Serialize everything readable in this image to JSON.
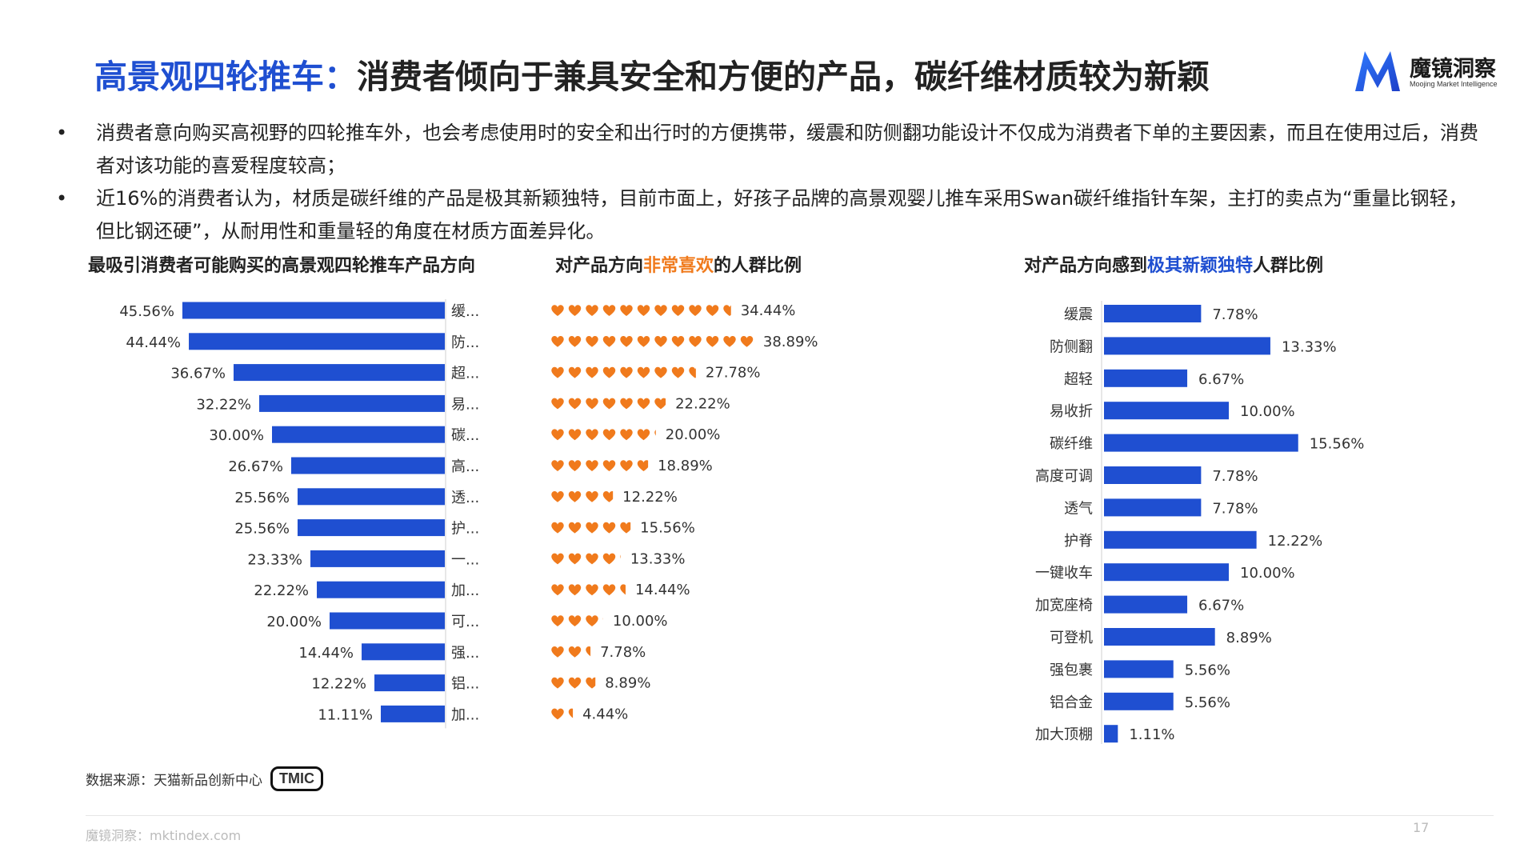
{
  "header": {
    "title_accent": "高景观四轮推车：",
    "title_rest": "消费者倾向于兼具安全和方便的产品，碳纤维材质较为新颖",
    "logo_cn": "魔镜洞察",
    "logo_en": "Moojing Market Intelligence",
    "logo_letter": "M"
  },
  "bullets": [
    "消费者意向购买高视野的四轮推车外，也会考虑使用时的安全和出行时的方便携带，缓震和防侧翻功能设计不仅成为消费者下单的主要因素，而且在使用过后，消费者对该功能的喜爱程度较高；",
    "近16%的消费者认为，材质是碳纤维的产品是极其新颖独特，目前市面上，好孩子品牌的高景观婴儿推车采用Swan碳纤维指针车架，主打的卖点为“重量比钢轻，但比钢还硬”，从耐用性和重量轻的角度在材质方面差异化。"
  ],
  "bullet_marker": "•",
  "section_titles": {
    "left": "最吸引消费者可能购买的高景观四轮推车产品方向",
    "middle_pre": "对产品方向",
    "middle_highlight": "非常喜欢",
    "middle_post": "的人群比例",
    "right_pre": "对产品方向感到",
    "right_highlight": "极其新颖独特",
    "right_post": "人群比例"
  },
  "colors": {
    "blue": "#1f4fd1",
    "orange": "#f07a1c",
    "text": "#333333"
  },
  "chart_data": [
    {
      "type": "bar",
      "orientation": "horizontal",
      "title": "最吸引消费者可能购买的高景观四轮推车产品方向",
      "categories": [
        "缓...",
        "防...",
        "超...",
        "易...",
        "碳...",
        "高...",
        "透...",
        "护...",
        "一...",
        "加...",
        "可...",
        "强...",
        "铝...",
        "加..."
      ],
      "values": [
        45.56,
        44.44,
        36.67,
        32.22,
        30.0,
        26.67,
        25.56,
        25.56,
        23.33,
        22.22,
        20.0,
        14.44,
        12.22,
        11.11
      ],
      "value_labels": [
        "45.56%",
        "44.44%",
        "36.67%",
        "32.22%",
        "30.00%",
        "26.67%",
        "25.56%",
        "25.56%",
        "23.33%",
        "22.22%",
        "20.00%",
        "14.44%",
        "12.22%",
        "11.11%"
      ],
      "unit": "%",
      "color": "#1f4fd1"
    },
    {
      "type": "bar",
      "orientation": "horizontal",
      "mark": "heart-pictogram",
      "title": "对产品方向非常喜欢的人群比例",
      "values": [
        34.44,
        38.89,
        27.78,
        22.22,
        20.0,
        18.89,
        12.22,
        15.56,
        13.33,
        14.44,
        10.0,
        7.78,
        8.89,
        4.44
      ],
      "value_labels": [
        "34.44%",
        "38.89%",
        "27.78%",
        "22.22%",
        "20.00%",
        "18.89%",
        "12.22%",
        "15.56%",
        "13.33%",
        "14.44%",
        "10.00%",
        "7.78%",
        "8.89%",
        "4.44%"
      ],
      "unit": "%",
      "color": "#f07a1c"
    },
    {
      "type": "bar",
      "orientation": "horizontal",
      "title": "对产品方向感到极其新颖独特人群比例",
      "categories": [
        "缓震",
        "防侧翻",
        "超轻",
        "易收折",
        "碳纤维",
        "高度可调",
        "透气",
        "护脊",
        "一键收车",
        "加宽座椅",
        "可登机",
        "强包裹",
        "铝合金",
        "加大顶棚"
      ],
      "values": [
        7.78,
        13.33,
        6.67,
        10.0,
        15.56,
        7.78,
        7.78,
        12.22,
        10.0,
        6.67,
        8.89,
        5.56,
        5.56,
        1.11
      ],
      "value_labels": [
        "7.78%",
        "13.33%",
        "6.67%",
        "10.00%",
        "15.56%",
        "7.78%",
        "7.78%",
        "12.22%",
        "10.00%",
        "6.67%",
        "8.89%",
        "5.56%",
        "5.56%",
        "1.11%"
      ],
      "unit": "%",
      "color": "#1f4fd1"
    }
  ],
  "footer": {
    "source_label": "数据来源：天猫新品创新中心",
    "source_logo": "TMIC",
    "site": "魔镜洞察：mktindex.com",
    "page_number": "17"
  }
}
